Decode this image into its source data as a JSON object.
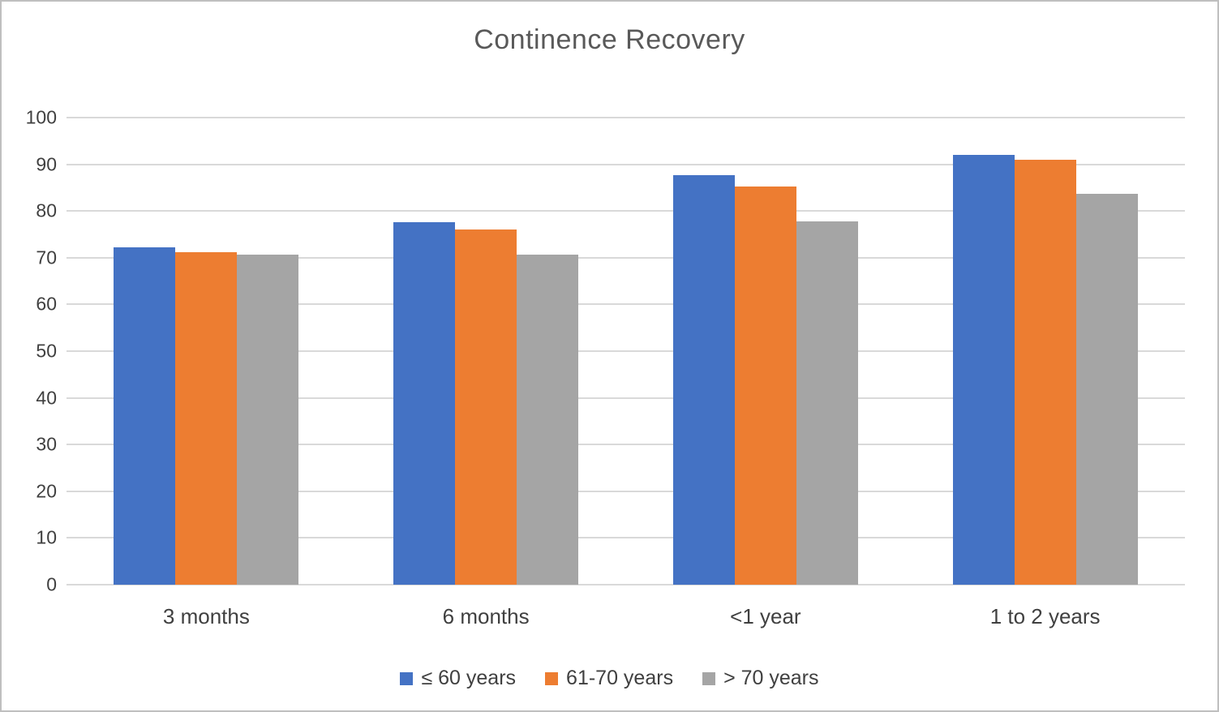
{
  "chart_data": {
    "type": "bar",
    "title": "Continence Recovery",
    "xlabel": "",
    "ylabel": "",
    "ylim": [
      0,
      100
    ],
    "ytick_step": 10,
    "grid": true,
    "legend_position": "bottom",
    "categories": [
      "3 months",
      "6 months",
      "<1 year",
      "1 to 2 years"
    ],
    "series": [
      {
        "name": "≤ 60 years",
        "color": "#4472C4",
        "values": [
          72.3,
          77.6,
          87.7,
          92.1
        ]
      },
      {
        "name": "61-70 years",
        "color": "#ED7D31",
        "values": [
          71.1,
          76.1,
          85.2,
          91.0
        ]
      },
      {
        "name": "> 70 years",
        "color": "#A5A5A5",
        "values": [
          70.7,
          70.7,
          77.8,
          83.7
        ]
      }
    ]
  },
  "colors": {
    "grid": "#d9d9d9",
    "axis_text": "#404040",
    "title_text": "#595959",
    "border": "#bfbfbf",
    "background": "#ffffff"
  }
}
